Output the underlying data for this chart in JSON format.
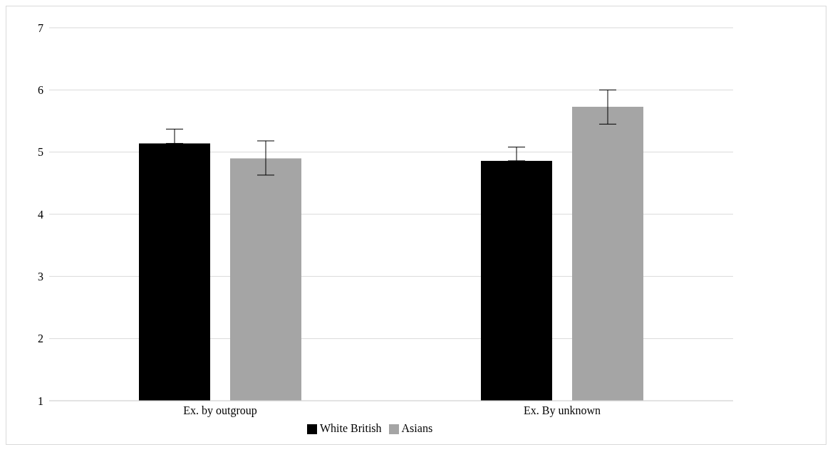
{
  "chart_data": {
    "type": "bar",
    "categories": [
      "Ex. by outgroup",
      "Ex. By unknown"
    ],
    "series": [
      {
        "name": "White British",
        "color": "#000000",
        "values": [
          5.14,
          4.86
        ],
        "errors": [
          [
            5.14,
            5.37
          ],
          [
            4.86,
            5.08
          ]
        ]
      },
      {
        "name": "Asians",
        "color": "#a5a5a5",
        "values": [
          4.9,
          5.73
        ],
        "errors": [
          [
            4.63,
            5.18
          ],
          [
            5.45,
            6.0
          ]
        ]
      }
    ],
    "ylim": [
      1,
      7
    ],
    "yticks": [
      1,
      2,
      3,
      4,
      5,
      6,
      7
    ],
    "grid": "y",
    "legend": "bottom"
  }
}
